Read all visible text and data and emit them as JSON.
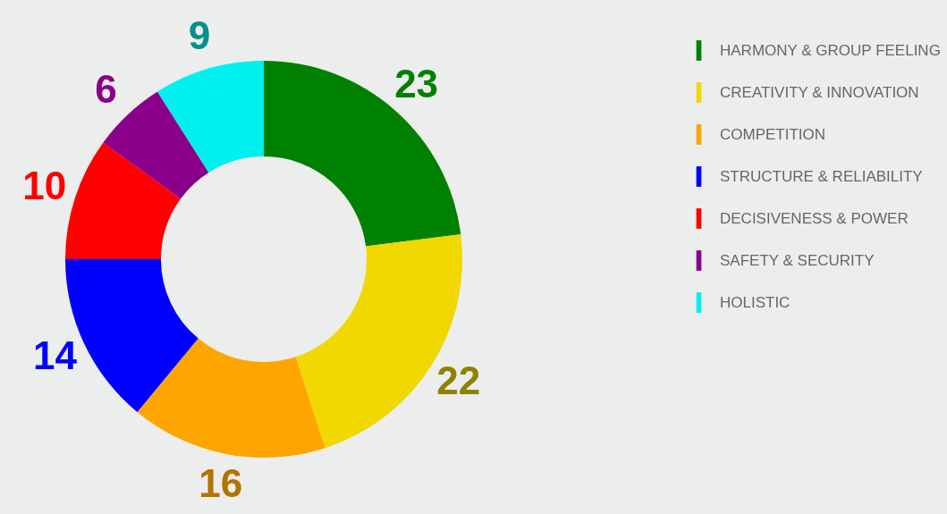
{
  "chart_data": {
    "type": "donut",
    "categories": [
      "HARMONY & GROUP FEELING",
      "CREATIVITY & INNOVATION",
      "COMPETITION",
      "STRUCTURE & RELIABILITY",
      "DECISIVENESS & POWER",
      "SAFETY & SECURITY",
      "HOLISTIC"
    ],
    "values": [
      23,
      22,
      16,
      14,
      10,
      6,
      9
    ],
    "colors": [
      "#008000",
      "#f0d800",
      "#ffa500",
      "#0000ff",
      "#ff0000",
      "#8b008b",
      "#00f0f0"
    ],
    "data_labels": true,
    "legend": "right"
  }
}
